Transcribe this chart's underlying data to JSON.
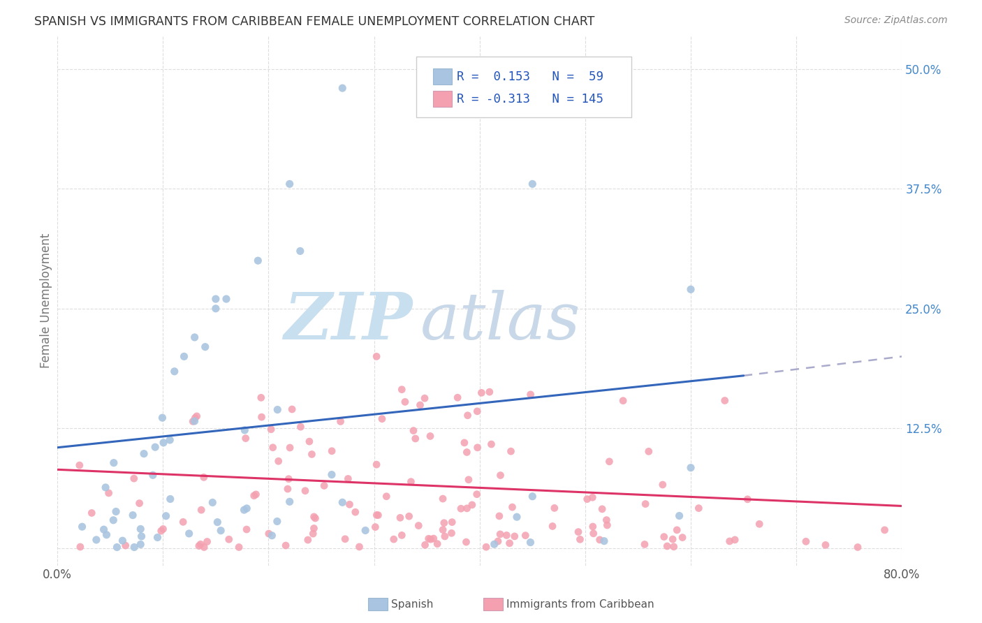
{
  "title": "SPANISH VS IMMIGRANTS FROM CARIBBEAN FEMALE UNEMPLOYMENT CORRELATION CHART",
  "source": "Source: ZipAtlas.com",
  "ylabel": "Female Unemployment",
  "xlim": [
    0.0,
    0.8
  ],
  "ylim": [
    -0.018,
    0.535
  ],
  "yticks": [
    0.0,
    0.125,
    0.25,
    0.375,
    0.5
  ],
  "ytick_labels": [
    "",
    "12.5%",
    "25.0%",
    "37.5%",
    "50.0%"
  ],
  "color_blue": "#a8c4e0",
  "color_pink": "#f4a0b0",
  "line_blue": "#3366bb",
  "line_pink": "#dd3366",
  "line_gray": "#aaaacc",
  "blue_line_y0": 0.105,
  "blue_line_y1": 0.18,
  "blue_line_x1": 0.65,
  "gray_line_x0": 0.65,
  "gray_line_x1": 0.8,
  "gray_line_y0": 0.18,
  "gray_line_y1": 0.2,
  "pink_line_y0": 0.082,
  "pink_line_y1": 0.044,
  "watermark_zip_color": "#c8dff0",
  "watermark_atlas_color": "#c8d8e8",
  "legend_text_color": "#2255bb",
  "legend_border_color": "#cccccc",
  "bottom_legend_text_color": "#555555",
  "title_color": "#333333",
  "source_color": "#888888",
  "grid_color": "#dddddd",
  "ylabel_color": "#777777",
  "xtick_color": "#555555",
  "ytick_right_color": "#4488cc"
}
